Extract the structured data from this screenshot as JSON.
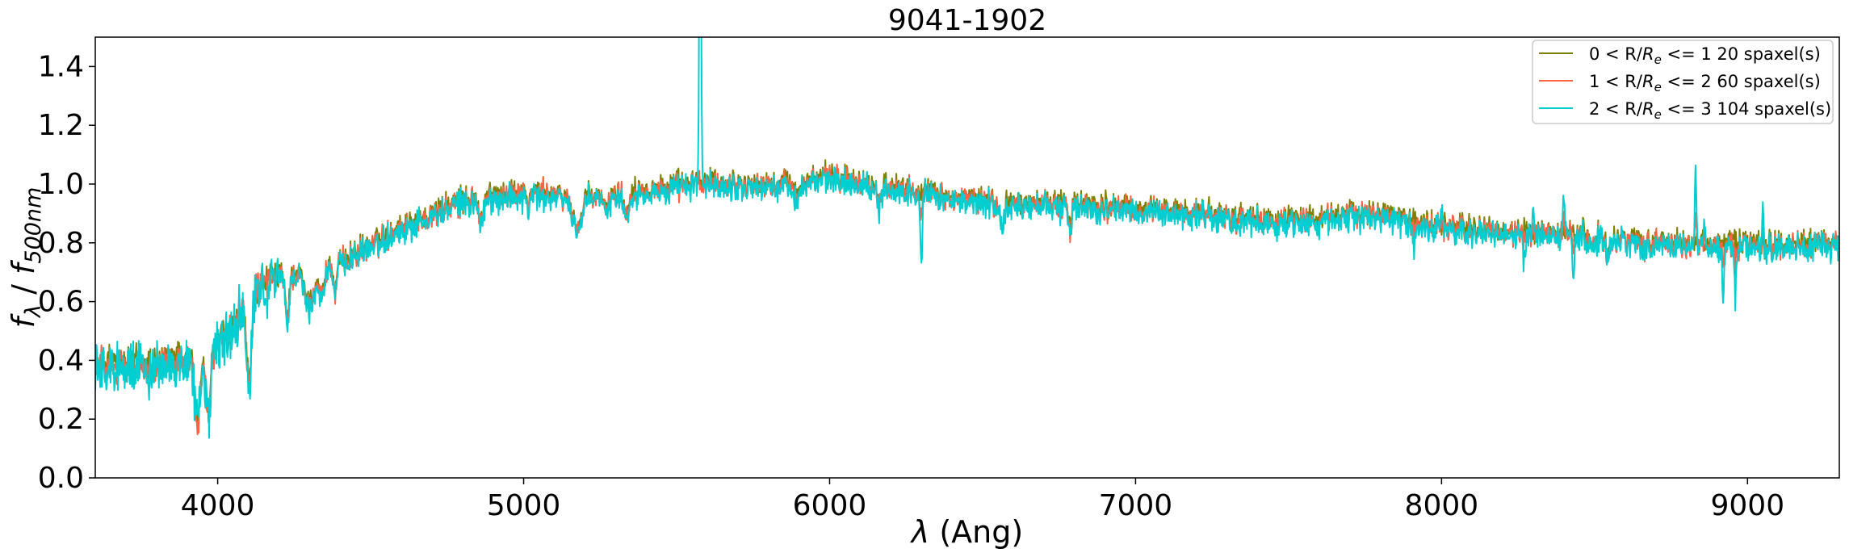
{
  "chart_data": {
    "type": "line",
    "title": "9041-1902",
    "xlabel_sym": "λ",
    "xlabel_rest": " (Ang)",
    "ylabel": {
      "f": "f",
      "sub1": "λ",
      "sep": " / ",
      "sub2": "500nm"
    },
    "xlim": [
      3600,
      9300
    ],
    "ylim": [
      0.0,
      1.5
    ],
    "xticks": [
      4000,
      5000,
      6000,
      7000,
      8000,
      9000
    ],
    "xtick_labels": [
      "4000",
      "5000",
      "6000",
      "7000",
      "8000",
      "9000"
    ],
    "yticks": [
      0.0,
      0.2,
      0.4,
      0.6,
      0.8,
      1.0,
      1.2,
      1.4
    ],
    "ytick_labels": [
      "0.0",
      "0.2",
      "0.4",
      "0.6",
      "0.8",
      "1.0",
      "1.2",
      "1.4"
    ],
    "grid": false,
    "legend_position": "top-right",
    "series": [
      {
        "legend": {
          "pre": "0 < R/",
          "R": "R",
          "e": "e",
          "post": " <= 1 20 spaxel(s)"
        },
        "color": "#808000",
        "offset": 0.01,
        "noise": 0.03
      },
      {
        "legend": {
          "pre": "1 < R/",
          "R": "R",
          "e": "e",
          "post": " <= 2 60 spaxel(s)"
        },
        "color": "#ff6347",
        "offset": 0.0,
        "noise": 0.035
      },
      {
        "legend": {
          "pre": "2 < R/",
          "R": "R",
          "e": "e",
          "post": " <= 3 104 spaxel(s)"
        },
        "color": "#00ced1",
        "offset": -0.008,
        "noise": 0.045
      }
    ],
    "continuum": [
      [
        3600,
        0.38
      ],
      [
        3800,
        0.38
      ],
      [
        3950,
        0.42
      ],
      [
        4050,
        0.5
      ],
      [
        4100,
        0.62
      ],
      [
        4200,
        0.68
      ],
      [
        4400,
        0.73
      ],
      [
        4600,
        0.85
      ],
      [
        4800,
        0.94
      ],
      [
        5000,
        0.97
      ],
      [
        5200,
        0.95
      ],
      [
        5400,
        0.98
      ],
      [
        5600,
        1.0
      ],
      [
        5800,
        0.99
      ],
      [
        6000,
        1.02
      ],
      [
        6200,
        0.99
      ],
      [
        6400,
        0.95
      ],
      [
        6600,
        0.93
      ],
      [
        6800,
        0.93
      ],
      [
        7000,
        0.91
      ],
      [
        7200,
        0.9
      ],
      [
        7400,
        0.87
      ],
      [
        7600,
        0.88
      ],
      [
        7800,
        0.9
      ],
      [
        7900,
        0.87
      ],
      [
        8000,
        0.85
      ],
      [
        8200,
        0.83
      ],
      [
        8400,
        0.83
      ],
      [
        8600,
        0.81
      ],
      [
        8800,
        0.79
      ],
      [
        9000,
        0.79
      ],
      [
        9300,
        0.79
      ]
    ],
    "absorption_features": [
      [
        3934,
        0.26,
        8
      ],
      [
        3969,
        0.22,
        8
      ],
      [
        4102,
        0.3,
        8
      ],
      [
        4227,
        0.15,
        6
      ],
      [
        4300,
        0.12,
        15
      ],
      [
        4340,
        0.1,
        8
      ],
      [
        4383,
        0.1,
        6
      ],
      [
        4861,
        0.08,
        8
      ],
      [
        5015,
        0.05,
        5
      ],
      [
        5175,
        0.1,
        15
      ],
      [
        5270,
        0.05,
        8
      ],
      [
        5335,
        0.08,
        8
      ],
      [
        5892,
        0.06,
        8
      ],
      [
        6162,
        0.08,
        6
      ],
      [
        6563,
        0.08,
        8
      ],
      [
        6785,
        0.1,
        5
      ],
      [
        7590,
        0.03,
        8
      ],
      [
        8498,
        0.04,
        6
      ],
      [
        8542,
        0.05,
        6
      ],
      [
        8662,
        0.04,
        6
      ]
    ],
    "sky_features": [
      [
        5577,
        -1.2,
        3
      ],
      [
        6300,
        0.22,
        3
      ],
      [
        8830,
        -0.25,
        3
      ],
      [
        8860,
        -0.1,
        3
      ],
      [
        8920,
        0.18,
        3
      ],
      [
        8960,
        0.2,
        3
      ],
      [
        8430,
        0.15,
        3
      ],
      [
        8400,
        -0.15,
        3
      ],
      [
        8270,
        0.1,
        3
      ],
      [
        8300,
        -0.1,
        3
      ],
      [
        8000,
        -0.1,
        3
      ],
      [
        7910,
        0.08,
        3
      ],
      [
        7340,
        0.05,
        3
      ],
      [
        9050,
        -0.12,
        3
      ]
    ]
  }
}
